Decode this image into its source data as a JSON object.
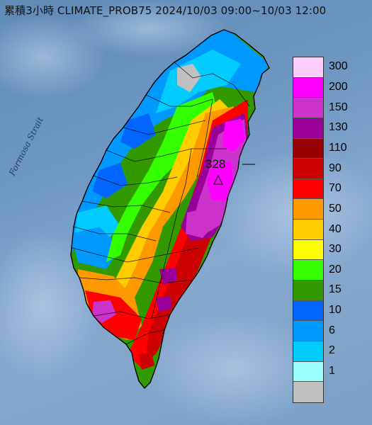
{
  "title": "累積3小時 CLIMATE_PROB75 2024/10/03 09:00~10/03 12:00",
  "sea_label": "Formosa Strait",
  "peak": {
    "value": "328",
    "marker_icon": "triangle-marker-icon"
  },
  "legend": {
    "unit_hint": "mm",
    "items": [
      {
        "label": "300",
        "color": "#ffccff"
      },
      {
        "label": "200",
        "color": "#ff00ff"
      },
      {
        "label": "150",
        "color": "#cc33cc"
      },
      {
        "label": "130",
        "color": "#990099"
      },
      {
        "label": "110",
        "color": "#990000"
      },
      {
        "label": "90",
        "color": "#cc0000"
      },
      {
        "label": "70",
        "color": "#ff0000"
      },
      {
        "label": "50",
        "color": "#ff9900"
      },
      {
        "label": "40",
        "color": "#ffcc00"
      },
      {
        "label": "30",
        "color": "#ffff00"
      },
      {
        "label": "20",
        "color": "#33ff00"
      },
      {
        "label": "15",
        "color": "#339900"
      },
      {
        "label": "10",
        "color": "#0066ff"
      },
      {
        "label": "6",
        "color": "#0099ff"
      },
      {
        "label": "2",
        "color": "#00ccff"
      },
      {
        "label": "1",
        "color": "#99ffff"
      },
      {
        "label": "",
        "color": "#c0c0c0"
      }
    ]
  }
}
